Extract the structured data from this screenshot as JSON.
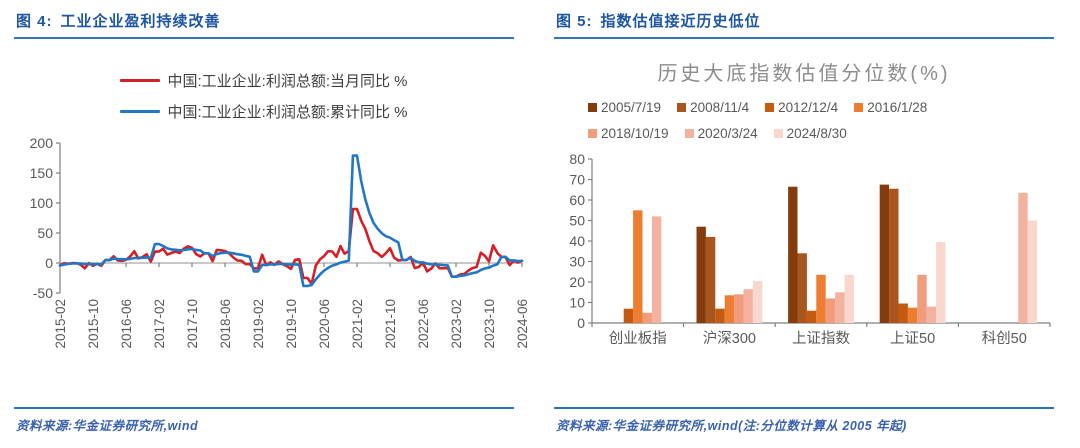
{
  "figure4": {
    "label": "图 4:",
    "title": "工业企业盈利持续改善",
    "source": "资料来源:华金证券研究所,wind"
  },
  "figure5": {
    "label": "图 5:",
    "title": "指数估值接近历史低位",
    "chart_title": "历史大底指数估值分位数(%)",
    "source": "资料来源:华金证券研究所,wind(注:分位数计算从 2005 年起)"
  },
  "chart_data": [
    {
      "type": "line",
      "panel": "figure4",
      "x_start": "2015-02",
      "x_end": "2024-06",
      "x_freq": "monthly",
      "x_tick_labels": [
        "2015-02",
        "2015-10",
        "2016-06",
        "2017-02",
        "2017-10",
        "2018-06",
        "2019-02",
        "2019-10",
        "2020-06",
        "2021-02",
        "2021-10",
        "2022-06",
        "2023-02",
        "2023-10",
        "2024-06"
      ],
      "x_tick_step": 8,
      "ylim": [
        -50,
        200
      ],
      "y_ticks": [
        200,
        150,
        100,
        50,
        0,
        -50
      ],
      "grid": false,
      "legend_position": "top",
      "series": [
        {
          "name": "中国:工业企业:利润总额:当月同比 %",
          "color": "#D22026",
          "values": [
            -4.2,
            -0.4,
            -1.3,
            -0.1,
            -0.3,
            -2.9,
            -8.8,
            -0.1,
            -4.6,
            -1.4,
            -4.7,
            4.8,
            4.8,
            11.1,
            4.2,
            3.7,
            5.1,
            11.0,
            19.5,
            7.7,
            9.8,
            14.5,
            2.3,
            19.0,
            19.0,
            23.8,
            14.0,
            16.7,
            19.1,
            16.5,
            24.0,
            27.7,
            25.1,
            14.9,
            10.8,
            16.1,
            16.1,
            3.1,
            21.9,
            21.1,
            20.0,
            16.2,
            9.2,
            4.1,
            3.6,
            -1.8,
            -1.9,
            -9.0,
            -9.0,
            13.9,
            -3.7,
            1.1,
            -3.1,
            2.6,
            -2.0,
            -5.3,
            -9.9,
            5.4,
            6.2,
            -25.0,
            -25.0,
            -34.9,
            -4.3,
            6.0,
            11.5,
            19.6,
            19.1,
            10.1,
            28.2,
            15.5,
            20.1,
            90.0,
            90.0,
            71.0,
            57.0,
            36.4,
            20.0,
            16.4,
            10.1,
            16.3,
            24.6,
            9.0,
            4.2,
            5.0,
            5.0,
            10.0,
            -8.5,
            -6.5,
            0.8,
            -14.0,
            -9.2,
            -0.8,
            -8.6,
            -8.9,
            -8.3,
            -22.9,
            -22.9,
            -19.2,
            -18.2,
            -12.6,
            -8.3,
            -6.7,
            17.2,
            11.9,
            2.7,
            29.5,
            16.8,
            10.2,
            10.2,
            -3.5,
            4.0,
            0.7,
            3.6
          ]
        },
        {
          "name": "中国:工业企业:利润总额:累计同比 %",
          "color": "#2277C3",
          "values": [
            -4.2,
            -2.7,
            -1.3,
            -0.8,
            -0.7,
            -1.0,
            -1.9,
            -1.7,
            -2.0,
            -1.9,
            -2.3,
            4.8,
            4.8,
            7.4,
            6.5,
            6.4,
            6.2,
            6.9,
            8.4,
            8.4,
            8.6,
            9.4,
            8.5,
            31.5,
            31.5,
            28.3,
            24.4,
            22.7,
            22.0,
            21.2,
            21.6,
            22.8,
            23.3,
            21.9,
            21.0,
            16.1,
            16.1,
            11.6,
            15.0,
            16.5,
            17.2,
            17.1,
            16.2,
            14.7,
            13.6,
            11.8,
            10.3,
            -14.0,
            -14.0,
            -3.3,
            -3.4,
            -2.3,
            -2.4,
            -1.7,
            -1.7,
            -2.1,
            -2.9,
            -2.1,
            -3.3,
            -38.3,
            -38.3,
            -36.7,
            -27.4,
            -19.3,
            -12.8,
            -8.1,
            -4.4,
            -2.4,
            0.7,
            2.4,
            4.1,
            179.0,
            179.0,
            137.3,
            106.1,
            83.4,
            66.9,
            57.3,
            49.5,
            44.7,
            42.2,
            38.0,
            34.3,
            5.0,
            5.0,
            8.5,
            3.5,
            1.0,
            1.0,
            -1.1,
            -2.1,
            -2.3,
            -3.0,
            -3.6,
            -4.0,
            -22.9,
            -22.9,
            -21.4,
            -20.6,
            -18.8,
            -16.8,
            -15.5,
            -11.7,
            -9.0,
            -7.8,
            -4.4,
            -2.3,
            10.2,
            10.2,
            4.3,
            4.3,
            3.4,
            3.5
          ]
        }
      ]
    },
    {
      "type": "bar",
      "panel": "figure5",
      "title": "历史大底指数估值分位数(%)",
      "categories": [
        "创业板指",
        "沪深300",
        "上证指数",
        "上证50",
        "科创50"
      ],
      "ylim": [
        0,
        80
      ],
      "y_ticks": [
        80,
        70,
        60,
        50,
        40,
        30,
        20,
        10,
        0
      ],
      "grid": false,
      "legend_position": "top",
      "series": [
        {
          "name": "2005/7/19",
          "color": "#843C0C",
          "values": [
            null,
            47,
            66.5,
            67.5,
            null
          ]
        },
        {
          "name": "2008/11/4",
          "color": "#A8551E",
          "values": [
            null,
            42,
            34,
            65.5,
            null
          ]
        },
        {
          "name": "2012/12/4",
          "color": "#C55A11",
          "values": [
            7,
            7,
            6,
            9.5,
            null
          ]
        },
        {
          "name": "2016/1/28",
          "color": "#ED7D31",
          "values": [
            55,
            13.5,
            23.5,
            7.5,
            null
          ]
        },
        {
          "name": "2018/10/19",
          "color": "#F09C7D",
          "values": [
            5,
            14,
            12,
            23.5,
            null
          ]
        },
        {
          "name": "2020/3/24",
          "color": "#F3B2A0",
          "values": [
            52,
            16.5,
            15,
            8,
            63.5
          ]
        },
        {
          "name": "2024/8/30",
          "color": "#F8D7CD",
          "values": [
            0,
            20.5,
            23.5,
            39.5,
            50
          ]
        }
      ]
    }
  ]
}
